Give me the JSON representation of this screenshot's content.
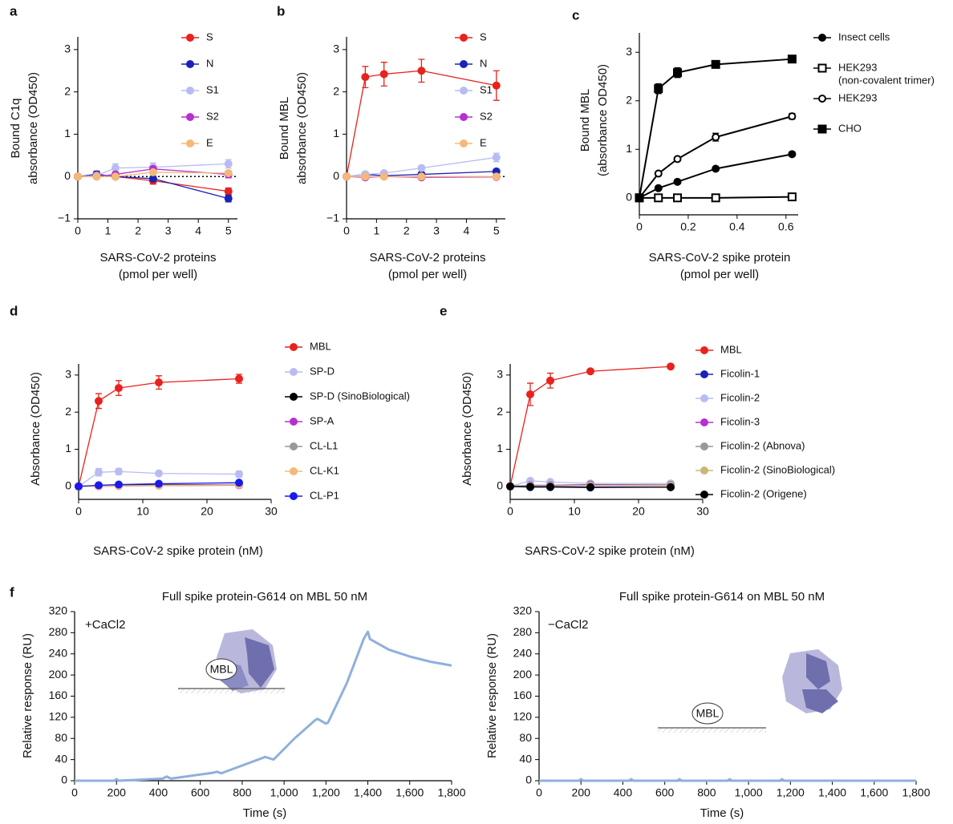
{
  "chart_data": [
    {
      "type": "line",
      "panel": "a",
      "y_label": [
        "Bound C1q",
        "absorbance (OD450)"
      ],
      "x_label": [
        "SARS-CoV-2 proteins",
        "(pmol per well)"
      ],
      "x": [
        0,
        0.625,
        1.25,
        2.5,
        5
      ],
      "xlim": [
        0,
        5.3
      ],
      "xticks": [
        0,
        1,
        2,
        3,
        4,
        5
      ],
      "ylim": [
        -1,
        3.3
      ],
      "yticks": [
        {
          "value": -1,
          "label": "−1"
        },
        0,
        1,
        2,
        3
      ],
      "zero_line": true,
      "series": [
        {
          "name": "S",
          "color": "#e8221c",
          "marker": "circle",
          "filled": true,
          "values": [
            0,
            0.05,
            0,
            -0.1,
            -0.35
          ],
          "errors": [
            0,
            0.08,
            0.05,
            0.08,
            0.08
          ]
        },
        {
          "name": "N",
          "color": "#1a22b8",
          "marker": "circle",
          "filled": true,
          "values": [
            0,
            0.05,
            0,
            -0.05,
            -0.52
          ],
          "errors": [
            0,
            0.05,
            0.03,
            0.05,
            0.08
          ]
        },
        {
          "name": "S1",
          "color": "#b8bcf2",
          "marker": "circle",
          "filled": true,
          "values": [
            0,
            0.02,
            0.2,
            0.22,
            0.3
          ],
          "errors": [
            0,
            0.05,
            0.1,
            0.1,
            0.1
          ]
        },
        {
          "name": "S2",
          "color": "#b530d0",
          "marker": "circle",
          "filled": true,
          "values": [
            0,
            0,
            0.05,
            0.18,
            0.05
          ],
          "errors": [
            0,
            0.03,
            0.05,
            0.05,
            0.08
          ]
        },
        {
          "name": "E",
          "color": "#f5b878",
          "marker": "circle",
          "filled": true,
          "values": [
            0,
            0,
            0,
            0.1,
            0.08
          ],
          "errors": [
            0,
            0.03,
            0.03,
            0.05,
            0.05
          ]
        }
      ]
    },
    {
      "type": "line",
      "panel": "b",
      "y_label": [
        "Bound MBL",
        "absorbance (OD450)"
      ],
      "x_label": [
        "SARS-CoV-2 proteins",
        "(pmol per well)"
      ],
      "x": [
        0,
        0.625,
        1.25,
        2.5,
        5
      ],
      "xlim": [
        0,
        5.3
      ],
      "xticks": [
        0,
        1,
        2,
        3,
        4,
        5
      ],
      "ylim": [
        -1,
        3.3
      ],
      "yticks": [
        {
          "value": -1,
          "label": "−1"
        },
        0,
        1,
        2,
        3
      ],
      "zero_line": true,
      "series": [
        {
          "name": "S",
          "color": "#e8221c",
          "marker": "circle",
          "filled": true,
          "values": [
            0,
            2.35,
            2.42,
            2.5,
            2.15
          ],
          "errors": [
            0,
            0.25,
            0.28,
            0.27,
            0.35
          ]
        },
        {
          "name": "N",
          "color": "#1a22b8",
          "marker": "circle",
          "filled": true,
          "values": [
            0,
            0.05,
            0.02,
            0.05,
            0.12
          ],
          "errors": [
            0,
            0.03,
            0.03,
            0.03,
            0.05
          ]
        },
        {
          "name": "S1",
          "color": "#b8bcf2",
          "marker": "circle",
          "filled": true,
          "values": [
            0,
            0.05,
            0.08,
            0.2,
            0.45
          ],
          "errors": [
            0,
            0.03,
            0.03,
            0.05,
            0.1
          ]
        },
        {
          "name": "S2",
          "color": "#b530d0",
          "marker": "circle",
          "filled": true,
          "values": [
            0,
            -0.02,
            0,
            -0.02,
            -0.01
          ],
          "errors": [
            0,
            0.02,
            0.02,
            0.02,
            0.02
          ]
        },
        {
          "name": "E",
          "color": "#f5b878",
          "marker": "circle",
          "filled": true,
          "values": [
            0,
            0,
            0,
            0,
            0
          ],
          "errors": [
            0,
            0.02,
            0.02,
            0.02,
            0.02
          ]
        }
      ]
    },
    {
      "type": "line",
      "panel": "c",
      "y_label": [
        "Bound MBL",
        "(absorbance OD450)"
      ],
      "x_label": [
        "SARS-CoV-2 spike protein",
        "(pmol per well)"
      ],
      "x": [
        0,
        0.078,
        0.156,
        0.3125,
        0.625
      ],
      "xlim": [
        0,
        0.65
      ],
      "xticks": [
        0,
        0.2,
        0.4,
        0.6
      ],
      "ylim": [
        -0.35,
        3.4
      ],
      "yticks": [
        0,
        1,
        2,
        3
      ],
      "series": [
        {
          "name": "Insect cells",
          "color": "#000000",
          "marker": "circle",
          "filled": true,
          "values": [
            0,
            0.2,
            0.33,
            0.6,
            0.9
          ],
          "errors": [
            0,
            0.02,
            0.02,
            0.03,
            0.03
          ]
        },
        {
          "name": "HEK293",
          "name_line2": "(non-covalent trimer)",
          "color": "#000000",
          "marker": "square",
          "filled": false,
          "values": [
            0,
            0,
            0,
            0,
            0.02
          ],
          "errors": [
            0,
            0.02,
            0.02,
            0.02,
            0.03
          ]
        },
        {
          "name": "HEK293",
          "color": "#000000",
          "marker": "circle",
          "filled": false,
          "values": [
            0,
            0.5,
            0.8,
            1.25,
            1.68
          ],
          "errors": [
            0,
            0.03,
            0.04,
            0.08,
            0.06
          ]
        },
        {
          "name": "CHO",
          "color": "#000000",
          "marker": "square",
          "filled": true,
          "values": [
            0,
            2.25,
            2.58,
            2.75,
            2.86
          ],
          "errors": [
            0,
            0.1,
            0.1,
            0.06,
            0.04
          ]
        }
      ]
    },
    {
      "type": "line",
      "panel": "d",
      "y_label": [
        "Absorbance (OD450)"
      ],
      "x_label": [
        "SARS-CoV-2 spike protein (nM)"
      ],
      "x": [
        0,
        3.125,
        6.25,
        12.5,
        25
      ],
      "xlim": [
        0,
        30
      ],
      "xticks": [
        0,
        10,
        20,
        30
      ],
      "ylim": [
        -0.35,
        3.3
      ],
      "yticks": [
        0,
        1,
        2,
        3
      ],
      "series": [
        {
          "name": "MBL",
          "color": "#e8221c",
          "marker": "circle",
          "filled": true,
          "values": [
            0,
            2.3,
            2.65,
            2.8,
            2.9
          ],
          "errors": [
            0,
            0.2,
            0.2,
            0.18,
            0.12
          ]
        },
        {
          "name": "SP-D",
          "color": "#b8bcf2",
          "marker": "circle",
          "filled": true,
          "values": [
            0,
            0.38,
            0.4,
            0.35,
            0.33
          ],
          "errors": [
            0,
            0.1,
            0.08,
            0.03,
            0.08
          ]
        },
        {
          "name": "SP-D (SinoBiological)",
          "color": "#000000",
          "marker": "circle",
          "filled": true,
          "values": [
            0,
            0.02,
            0.03,
            0.04,
            0.05
          ]
        },
        {
          "name": "SP-A",
          "color": "#b530d0",
          "marker": "circle",
          "filled": true,
          "values": [
            0,
            0,
            0.01,
            0.02,
            0.03
          ]
        },
        {
          "name": "CL-L1",
          "color": "#999999",
          "marker": "circle",
          "filled": true,
          "values": [
            0,
            0.01,
            0.02,
            0.03,
            0.05
          ]
        },
        {
          "name": "CL-K1",
          "color": "#f5b878",
          "marker": "circle",
          "filled": true,
          "values": [
            0,
            0,
            0.01,
            0.02,
            0.04
          ]
        },
        {
          "name": "CL-P1",
          "color": "#1a1aee",
          "marker": "circle",
          "filled": true,
          "values": [
            0,
            0.03,
            0.05,
            0.07,
            0.1
          ]
        }
      ]
    },
    {
      "type": "line",
      "panel": "e",
      "y_label": [
        "Absorbance (OD450)"
      ],
      "x_label": [
        "SARS-CoV-2 spike protein (nM)"
      ],
      "x": [
        0,
        3.125,
        6.25,
        12.5,
        25
      ],
      "xlim": [
        0,
        30
      ],
      "xticks": [
        0,
        10,
        20,
        30
      ],
      "ylim": [
        -0.35,
        3.3
      ],
      "yticks": [
        0,
        1,
        2,
        3
      ],
      "series": [
        {
          "name": "MBL",
          "color": "#e8221c",
          "marker": "circle",
          "filled": true,
          "values": [
            0,
            2.48,
            2.85,
            3.1,
            3.23
          ],
          "errors": [
            0,
            0.3,
            0.2,
            0.02,
            0.02
          ]
        },
        {
          "name": "Ficolin-1",
          "color": "#1a22b8",
          "marker": "circle",
          "filled": true,
          "values": [
            0,
            -0.02,
            -0.02,
            -0.03,
            -0.02
          ]
        },
        {
          "name": "Ficolin-2",
          "color": "#b8bcf2",
          "marker": "circle",
          "filled": true,
          "values": [
            0,
            0.15,
            0.12,
            0.08,
            0.08
          ]
        },
        {
          "name": "Ficolin-3",
          "color": "#b530d0",
          "marker": "circle",
          "filled": true,
          "values": [
            0,
            0.03,
            0.03,
            0.05,
            0.04
          ]
        },
        {
          "name": "Ficolin-2 (Abnova)",
          "color": "#999999",
          "marker": "circle",
          "filled": true,
          "values": [
            0,
            0.02,
            0.02,
            0.03,
            0.03
          ]
        },
        {
          "name": "Ficolin-2 (SinoBiological)",
          "color": "#c8b878",
          "marker": "circle",
          "filled": true,
          "values": [
            0,
            0.01,
            0.01,
            0.02,
            0.02
          ]
        },
        {
          "name": "Ficolin-2 (Origene)",
          "color": "#000000",
          "marker": "circle",
          "filled": true,
          "values": [
            0,
            -0.01,
            -0.01,
            -0.02,
            -0.02
          ]
        }
      ]
    },
    {
      "type": "line",
      "panel": "f",
      "title": "Full spike protein-G614 on MBL 50 nM",
      "annotation": "+CaCl2",
      "inset_label": "MBL",
      "y_label": [
        "Relative response (RU)"
      ],
      "x_label": [
        "Time (s)"
      ],
      "xlim": [
        0,
        1800
      ],
      "xticks": [
        0,
        200,
        400,
        600,
        800,
        {
          "value": 1000,
          "label": "1,000"
        },
        {
          "value": 1200,
          "label": "1,200"
        },
        {
          "value": 1400,
          "label": "1,400"
        },
        {
          "value": 1600,
          "label": "1,600"
        },
        {
          "value": 1800,
          "label": "1,800"
        }
      ],
      "ylim": [
        0,
        320
      ],
      "yticks": [
        0,
        40,
        80,
        120,
        160,
        200,
        240,
        280,
        320
      ],
      "series": [
        {
          "color": "#8fb0dc",
          "x": [
            0,
            190,
            200,
            210,
            420,
            440,
            460,
            660,
            680,
            700,
            890,
            910,
            950,
            1050,
            1150,
            1160,
            1200,
            1210,
            1300,
            1380,
            1400,
            1410,
            1500,
            1600,
            1700,
            1800
          ],
          "values": [
            0,
            0,
            3,
            0,
            4,
            8,
            4,
            15,
            17,
            14,
            42,
            45,
            40,
            80,
            115,
            117,
            108,
            110,
            185,
            268,
            282,
            268,
            248,
            235,
            225,
            218
          ]
        }
      ]
    },
    {
      "type": "line",
      "title": "Full spike protein-G614 on MBL 50 nM",
      "annotation": "−CaCl2",
      "inset_label": "MBL",
      "y_label": [
        "Relative response (RU)"
      ],
      "x_label": [
        "Time (s)"
      ],
      "xlim": [
        0,
        1800
      ],
      "xticks": [
        0,
        200,
        400,
        600,
        800,
        {
          "value": 1000,
          "label": "1,000"
        },
        {
          "value": 1200,
          "label": "1,200"
        },
        {
          "value": 1400,
          "label": "1,400"
        },
        {
          "value": 1600,
          "label": "1,600"
        },
        {
          "value": 1800,
          "label": "1,800"
        }
      ],
      "ylim": [
        0,
        320
      ],
      "yticks": [
        0,
        40,
        80,
        120,
        160,
        200,
        240,
        280,
        320
      ],
      "series": [
        {
          "color": "#8fb0dc",
          "x": [
            0,
            190,
            200,
            210,
            430,
            440,
            450,
            660,
            670,
            680,
            900,
            910,
            920,
            1150,
            1160,
            1170,
            1800
          ],
          "values": [
            0,
            0,
            3,
            0,
            0,
            3,
            0,
            0,
            3,
            0,
            0,
            3,
            0,
            0,
            3,
            0,
            0
          ]
        }
      ]
    }
  ]
}
